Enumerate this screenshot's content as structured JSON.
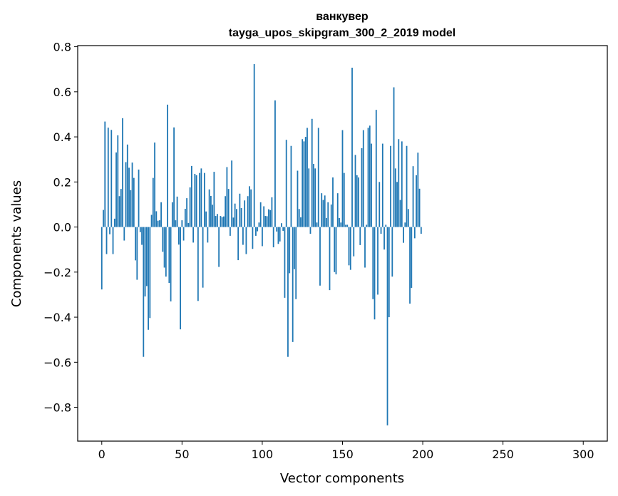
{
  "chart_data": {
    "type": "bar",
    "title_line1": "ванкувер",
    "title_line2": "tayga_upos_skipgram_300_2_2019 model",
    "xlabel": "Vector components",
    "ylabel": "Components values",
    "xlim": [
      -15,
      315
    ],
    "ylim": [
      -0.95,
      0.805
    ],
    "x_ticks": [
      0,
      50,
      100,
      150,
      200,
      250,
      300
    ],
    "x_tick_labels": [
      "0",
      "50",
      "100",
      "150",
      "200",
      "250",
      "300"
    ],
    "y_ticks": [
      -0.8,
      -0.6,
      -0.4,
      -0.2,
      0.0,
      0.2,
      0.4,
      0.6,
      0.8
    ],
    "y_tick_labels": [
      "−0.8",
      "−0.6",
      "−0.4",
      "−0.2",
      "0.0",
      "0.2",
      "0.4",
      "0.6",
      "0.8"
    ],
    "bar_color": "#1f77b4",
    "grid": false,
    "values": [
      -0.277,
      0.076,
      0.468,
      -0.12,
      0.441,
      -0.032,
      0.431,
      -0.12,
      0.037,
      0.331,
      0.407,
      0.137,
      0.169,
      0.483,
      -0.06,
      0.288,
      0.366,
      0.263,
      0.164,
      0.286,
      0.218,
      -0.148,
      -0.234,
      0.255,
      -0.023,
      -0.079,
      -0.576,
      -0.308,
      -0.262,
      -0.456,
      -0.404,
      0.054,
      0.218,
      0.375,
      0.07,
      0.028,
      0.03,
      0.11,
      -0.11,
      -0.18,
      -0.22,
      0.543,
      -0.248,
      -0.33,
      0.11,
      0.442,
      0.03,
      0.135,
      -0.078,
      -0.454,
      0.03,
      -0.06,
      0.081,
      0.128,
      0.018,
      0.176,
      0.271,
      -0.069,
      0.236,
      0.23,
      -0.328,
      0.24,
      0.26,
      -0.269,
      0.24,
      0.069,
      -0.069,
      0.167,
      0.138,
      0.099,
      0.245,
      0.049,
      0.058,
      -0.177,
      0.049,
      0.044,
      0.047,
      0.137,
      0.266,
      0.169,
      -0.039,
      0.295,
      0.042,
      0.104,
      0.08,
      -0.147,
      0.148,
      0.084,
      -0.079,
      0.118,
      -0.12,
      0.137,
      0.181,
      0.167,
      -0.097,
      0.723,
      -0.039,
      -0.019,
      0.02,
      0.11,
      -0.085,
      0.092,
      0.049,
      0.048,
      0.079,
      0.075,
      0.132,
      -0.09,
      0.562,
      -0.02,
      -0.075,
      -0.064,
      0.017,
      -0.017,
      -0.314,
      0.387,
      -0.576,
      -0.205,
      0.36,
      -0.51,
      -0.187,
      -0.32,
      0.25,
      0.08,
      0.043,
      0.39,
      0.38,
      0.4,
      0.44,
      0.26,
      -0.03,
      0.48,
      0.28,
      0.26,
      0.02,
      0.44,
      -0.26,
      0.15,
      0.12,
      0.14,
      0.04,
      0.11,
      -0.28,
      0.1,
      0.22,
      -0.2,
      -0.21,
      0.15,
      0.04,
      0.02,
      0.43,
      0.24,
      0.01,
      0.01,
      -0.17,
      -0.19,
      0.707,
      -0.13,
      0.32,
      0.23,
      0.22,
      -0.08,
      0.35,
      0.43,
      -0.18,
      0.01,
      0.44,
      0.45,
      0.37,
      -0.32,
      -0.41,
      0.52,
      -0.3,
      0.2,
      -0.03,
      0.37,
      -0.1,
      0.01,
      -0.88,
      -0.4,
      0.36,
      -0.22,
      0.62,
      0.26,
      0.2,
      0.39,
      0.12,
      0.38,
      -0.07,
      0.02,
      0.36,
      0.08,
      -0.34,
      -0.27,
      0.27,
      -0.05,
      0.23,
      0.33,
      0.17,
      -0.03
    ]
  }
}
